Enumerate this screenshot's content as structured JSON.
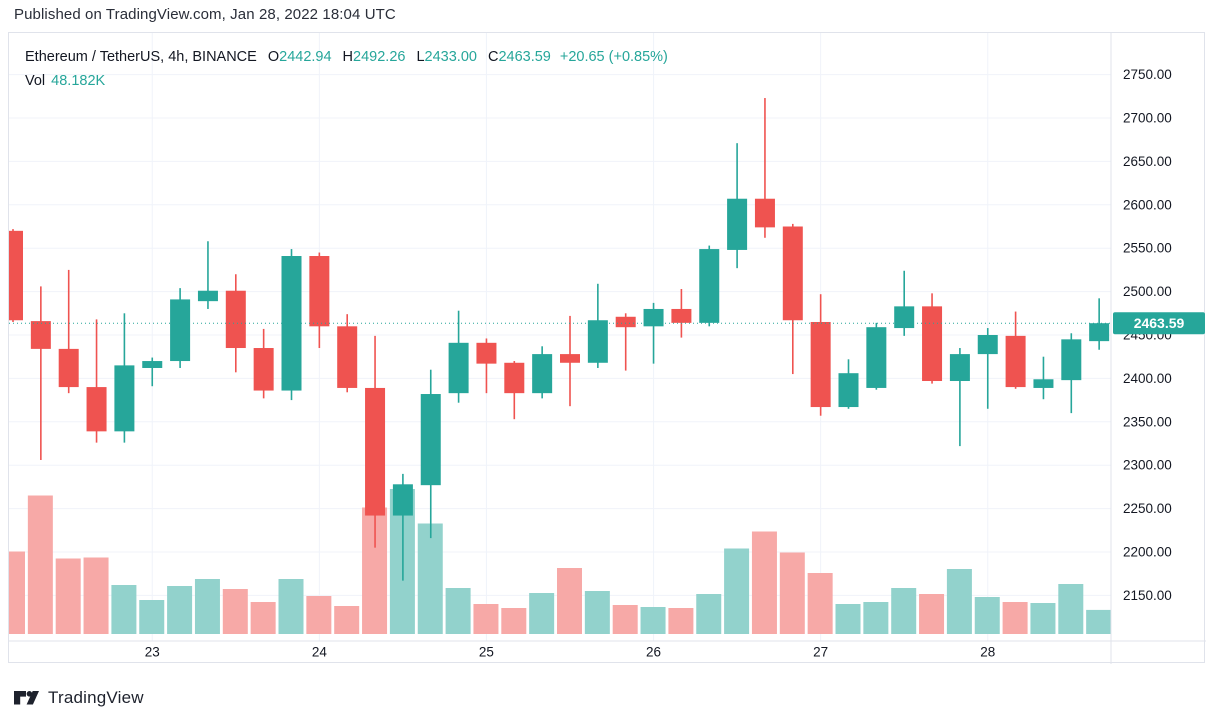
{
  "published_bar": {
    "text": "Published on TradingView.com, Jan 28, 2022 18:04 UTC"
  },
  "legend": {
    "symbol_title": "Ethereum / TetherUS, 4h, BINANCE",
    "o_label": "O",
    "o": "2442.94",
    "h_label": "H",
    "h": "2492.26",
    "l_label": "L",
    "l": "2433.00",
    "c_label": "C",
    "c": "2463.59",
    "change": "+20.65 (+0.85%)",
    "vol_label": "Vol",
    "vol_value": "48.182K"
  },
  "footer": {
    "brand": "TradingView"
  },
  "colors": {
    "up": "#26a69a",
    "down": "#ef5350",
    "volume_up": "#92d2cc",
    "volume_down": "#f7a9a7",
    "grid": "#f0f3fa",
    "border": "#e0e3eb",
    "axis_text": "#131722",
    "badge_bg": "#26a69a",
    "badge_text": "#ffffff",
    "last_price_line": "#26a69a"
  },
  "chart_data": {
    "type": "candlestick",
    "title": "Ethereum / TetherUS, 4h, BINANCE",
    "interval": "4h",
    "legend_position": "top-left",
    "grid": true,
    "last_price": 2463.59,
    "last_price_label": "2463.59",
    "y_axis": {
      "min": 2150,
      "max": 2750,
      "step": 50,
      "labels": [
        "2750.00",
        "2700.00",
        "2650.00",
        "2600.00",
        "2550.00",
        "2500.00",
        "2450.00",
        "2400.00",
        "2350.00",
        "2300.00",
        "2250.00",
        "2200.00",
        "2150.00"
      ]
    },
    "x_axis": {
      "day_labels": [
        "23",
        "24",
        "25",
        "26",
        "27",
        "28"
      ],
      "label_indices": [
        5,
        11,
        17,
        23,
        29,
        35
      ]
    },
    "series_note": "candles = [open, high, low, close, volume_in_thousands]",
    "candles": [
      [
        2570,
        2572,
        2465,
        2467,
        165
      ],
      [
        2466,
        2506,
        2306,
        2434,
        277
      ],
      [
        2434,
        2525,
        2383,
        2390,
        151
      ],
      [
        2390,
        2468,
        2326,
        2339,
        153
      ],
      [
        2339,
        2475,
        2326,
        2415,
        98
      ],
      [
        2412,
        2424,
        2391,
        2420,
        68
      ],
      [
        2420,
        2504,
        2412,
        2491,
        96
      ],
      [
        2489,
        2558,
        2480,
        2501,
        110
      ],
      [
        2501,
        2520,
        2407,
        2435,
        90
      ],
      [
        2435,
        2457,
        2377,
        2386,
        64
      ],
      [
        2386,
        2549,
        2375,
        2541,
        110
      ],
      [
        2541,
        2545,
        2435,
        2460,
        76
      ],
      [
        2460,
        2474,
        2384,
        2389,
        56
      ],
      [
        2389,
        2449,
        2205,
        2242,
        253
      ],
      [
        2242,
        2290,
        2167,
        2278,
        290
      ],
      [
        2277,
        2410,
        2216,
        2382,
        221
      ],
      [
        2383,
        2478,
        2372,
        2441,
        92
      ],
      [
        2441,
        2446,
        2383,
        2417,
        60
      ],
      [
        2418,
        2420,
        2353,
        2383,
        52
      ],
      [
        2383,
        2437,
        2377,
        2428,
        82
      ],
      [
        2428,
        2472,
        2368,
        2418,
        132
      ],
      [
        2418,
        2509,
        2412,
        2467,
        86
      ],
      [
        2471,
        2475,
        2409,
        2459,
        58
      ],
      [
        2460,
        2487,
        2417,
        2480,
        54
      ],
      [
        2480,
        2503,
        2447,
        2464,
        52
      ],
      [
        2464,
        2553,
        2460,
        2549,
        80
      ],
      [
        2548,
        2671,
        2527,
        2607,
        171
      ],
      [
        2607,
        2723,
        2562,
        2574,
        205
      ],
      [
        2575,
        2578,
        2405,
        2467,
        163
      ],
      [
        2465,
        2497,
        2357,
        2367,
        122
      ],
      [
        2367,
        2422,
        2365,
        2406,
        60
      ],
      [
        2389,
        2464,
        2387,
        2459,
        64
      ],
      [
        2458,
        2524,
        2449,
        2483,
        92
      ],
      [
        2483,
        2498,
        2394,
        2397,
        80
      ],
      [
        2397,
        2435,
        2322,
        2428,
        130
      ],
      [
        2428,
        2458,
        2365,
        2450,
        74
      ],
      [
        2449,
        2477,
        2388,
        2390,
        64
      ],
      [
        2389,
        2425,
        2376,
        2399,
        62
      ],
      [
        2398,
        2452,
        2360,
        2445,
        100
      ],
      [
        2442.94,
        2492.26,
        2433.0,
        2463.59,
        48.182
      ]
    ]
  }
}
